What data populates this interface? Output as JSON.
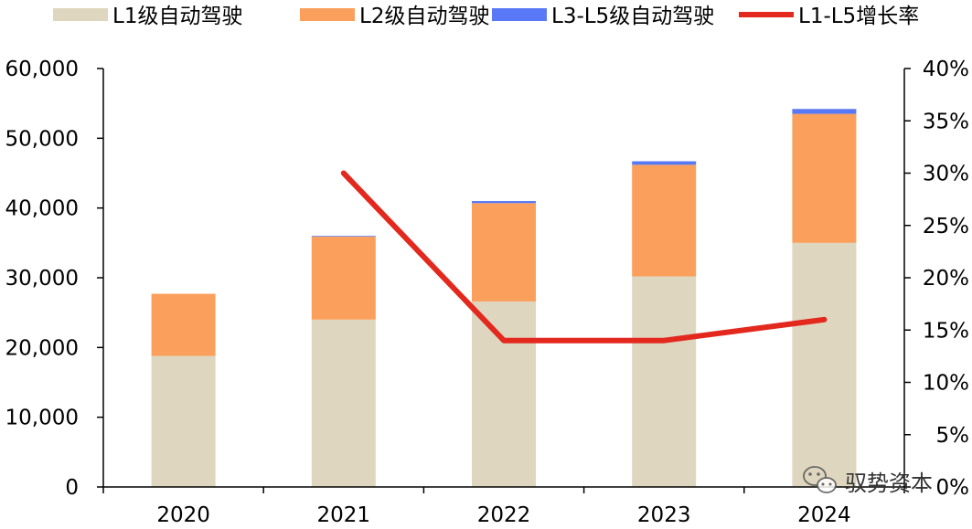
{
  "chart_data": {
    "type": "bar",
    "stacked": true,
    "categories": [
      "2020",
      "2021",
      "2022",
      "2023",
      "2024"
    ],
    "series": [
      {
        "name": "L1级自动驾驶",
        "color": "#ded6be",
        "values": [
          18800,
          24000,
          26600,
          30200,
          35000
        ]
      },
      {
        "name": "L2级自动驾驶",
        "color": "#fba05c",
        "values": [
          8900,
          11900,
          14100,
          16000,
          18500
        ]
      },
      {
        "name": "L3-L5级自动驾驶",
        "color": "#5978f5",
        "values": [
          0,
          100,
          300,
          500,
          700
        ]
      }
    ],
    "line_series": {
      "name": "L1-L5增长率",
      "color": "#e3281e",
      "axis": "right",
      "values": [
        null,
        0.3,
        0.14,
        0.14,
        0.16
      ]
    },
    "left_axis": {
      "ylim": [
        0,
        60000
      ],
      "ticks": [
        0,
        10000,
        20000,
        30000,
        40000,
        50000,
        60000
      ],
      "tick_labels": [
        "0",
        "10,000",
        "20,000",
        "30,000",
        "40,000",
        "50,000",
        "60,000"
      ]
    },
    "right_axis": {
      "ylim": [
        0,
        0.4
      ],
      "ticks": [
        0,
        0.05,
        0.1,
        0.15,
        0.2,
        0.25,
        0.3,
        0.35,
        0.4
      ],
      "tick_labels": [
        "0%",
        "5%",
        "10%",
        "15%",
        "20%",
        "25%",
        "30%",
        "35%",
        "40%"
      ]
    },
    "grid": false,
    "legend_position": "top"
  },
  "watermark": {
    "text": "驭势资本",
    "icon": "wechat-icon"
  }
}
